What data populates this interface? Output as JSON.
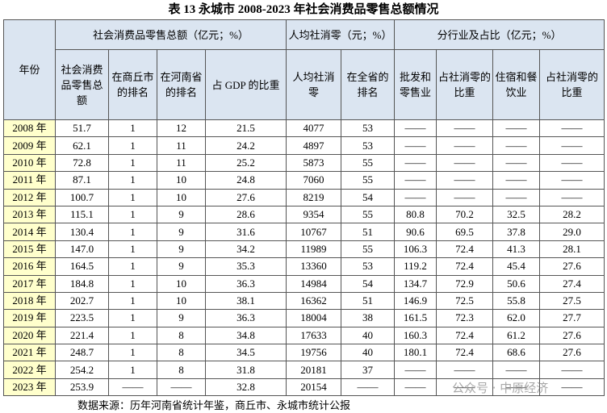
{
  "title": "表 13 永城市 2008-2023 年社会消费品零售总额情况",
  "table": {
    "groups": [
      "年份",
      "社会消费品零售总额（亿元；%）",
      "人均社消零（元；%）",
      "分行业及占比（亿元；%）"
    ],
    "columns": [
      "社会消费品零售总额",
      "在商丘市的排名",
      "在河南省的排名",
      "占 GDP 的比重",
      "人均社消零",
      "在全省的排名",
      "批发和零售业",
      "占社消零的比重",
      "住宿和餐饮业",
      "占社消零的比重"
    ],
    "rows": [
      [
        "2008 年",
        "51.7",
        "1",
        "12",
        "21.5",
        "4077",
        "53",
        "——",
        "——",
        "——",
        "——"
      ],
      [
        "2009 年",
        "62.1",
        "1",
        "11",
        "24.2",
        "4897",
        "53",
        "——",
        "——",
        "——",
        "——"
      ],
      [
        "2010 年",
        "72.8",
        "1",
        "11",
        "25.2",
        "5873",
        "55",
        "——",
        "——",
        "——",
        "——"
      ],
      [
        "2011 年",
        "87.1",
        "1",
        "10",
        "24.8",
        "7060",
        "55",
        "——",
        "——",
        "——",
        "——"
      ],
      [
        "2012 年",
        "100.7",
        "1",
        "10",
        "27.6",
        "8219",
        "54",
        "——",
        "——",
        "——",
        "——"
      ],
      [
        "2013 年",
        "115.1",
        "1",
        "9",
        "28.6",
        "9354",
        "55",
        "80.8",
        "70.2",
        "32.5",
        "28.2"
      ],
      [
        "2014 年",
        "130.4",
        "1",
        "9",
        "31.6",
        "10767",
        "51",
        "90.6",
        "69.5",
        "37.8",
        "29.0"
      ],
      [
        "2015 年",
        "147.0",
        "1",
        "9",
        "34.2",
        "11989",
        "55",
        "106.3",
        "72.4",
        "41.3",
        "28.1"
      ],
      [
        "2016 年",
        "164.5",
        "1",
        "9",
        "35.3",
        "13360",
        "53",
        "119.2",
        "72.4",
        "45.4",
        "27.6"
      ],
      [
        "2017 年",
        "184.8",
        "1",
        "10",
        "36.3",
        "14984",
        "54",
        "134.7",
        "72.9",
        "50.6",
        "27.4"
      ],
      [
        "2018 年",
        "202.7",
        "1",
        "10",
        "38.1",
        "16362",
        "51",
        "146.9",
        "72.5",
        "55.8",
        "27.5"
      ],
      [
        "2019 年",
        "223.5",
        "1",
        "9",
        "36.3",
        "18004",
        "38",
        "161.5",
        "72.3",
        "62.0",
        "27.7"
      ],
      [
        "2020 年",
        "221.4",
        "1",
        "8",
        "34.8",
        "17633",
        "40",
        "160.3",
        "72.4",
        "61.2",
        "27.6"
      ],
      [
        "2021 年",
        "248.7",
        "1",
        "8",
        "34.5",
        "19756",
        "40",
        "180.1",
        "72.4",
        "68.6",
        "27.6"
      ],
      [
        "2022 年",
        "254.2",
        "1",
        "8",
        "31.8",
        "20181",
        "37",
        "——",
        "——",
        "——",
        "——"
      ],
      [
        "2023 年",
        "253.9",
        "——",
        "——",
        "32.8",
        "20154",
        "——",
        "——",
        "——",
        "——",
        "——"
      ]
    ]
  },
  "source": "数据来源：历年河南省统计年鉴，商丘市、永城市统计公报",
  "watermark": "公众号 · 中原经济"
}
